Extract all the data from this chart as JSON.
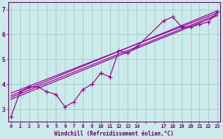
{
  "xlabel": "Windchill (Refroidissement éolien,°C)",
  "bg_color": "#cceaea",
  "line_color": "#990099",
  "grid_color": "#99cccc",
  "axis_color": "#660066",
  "text_color": "#660066",
  "xtick_vals": [
    0,
    1,
    2,
    3,
    4,
    5,
    6,
    7,
    8,
    9,
    10,
    11,
    12,
    13,
    14,
    17,
    18,
    19,
    20,
    21,
    22,
    23
  ],
  "ytick_vals": [
    3,
    4,
    5,
    6,
    7
  ],
  "xlim": [
    -0.3,
    23.3
  ],
  "ylim": [
    2.5,
    7.3
  ],
  "series1_x": [
    0,
    1,
    2,
    3,
    4,
    5,
    6,
    7,
    8,
    9,
    10,
    11,
    12,
    13,
    14,
    17,
    18,
    19,
    20,
    21,
    22,
    23
  ],
  "series1_y": [
    2.7,
    3.7,
    3.9,
    3.9,
    3.7,
    3.6,
    3.1,
    3.3,
    3.8,
    4.0,
    4.45,
    4.3,
    5.35,
    5.25,
    5.5,
    6.55,
    6.7,
    6.3,
    6.3,
    6.4,
    6.5,
    6.9
  ],
  "trend_lines": [
    {
      "x": [
        0,
        23
      ],
      "y": [
        3.55,
        6.95
      ]
    },
    {
      "x": [
        0,
        23
      ],
      "y": [
        3.65,
        6.87
      ]
    },
    {
      "x": [
        0,
        23
      ],
      "y": [
        3.48,
        6.8
      ]
    },
    {
      "x": [
        0,
        23
      ],
      "y": [
        3.4,
        6.75
      ]
    }
  ],
  "marker": "+",
  "markersize": 4,
  "linewidth": 0.9
}
